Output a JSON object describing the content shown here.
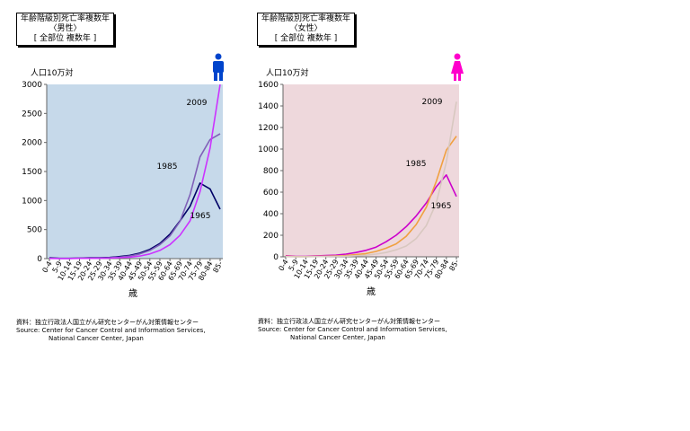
{
  "colors": {
    "male_bg": "#c6d9ea",
    "female_bg": "#eed8dc",
    "male_icon": "#0044cc",
    "female_icon": "#ff00cc"
  },
  "chart_data": [
    {
      "type": "line",
      "title_lines": [
        "年齢階級別死亡率複数年",
        "〈男性〉",
        "[ 全部位 複数年 ]"
      ],
      "unit_label": "人口10万対",
      "xlabel": "歳",
      "icon": "male-figure-icon",
      "categories": [
        "0-4",
        "5-9",
        "10-14",
        "15-19",
        "20-24",
        "25-29",
        "30-34",
        "35-39",
        "40-44",
        "45-49",
        "50-54",
        "55-59",
        "60-64",
        "65-69",
        "70-74",
        "75-79",
        "80-84",
        "85-"
      ],
      "ylim": [
        0,
        3000
      ],
      "yticks": [
        0,
        500,
        1000,
        1500,
        2000,
        2500,
        3000
      ],
      "grid": false,
      "series": [
        {
          "name": "1965",
          "color": "#000066",
          "values": [
            15,
            5,
            5,
            10,
            15,
            15,
            20,
            35,
            55,
            95,
            160,
            260,
            420,
            650,
            900,
            1300,
            1200,
            850
          ]
        },
        {
          "name": "1985",
          "color": "#8060b8",
          "values": [
            8,
            3,
            3,
            8,
            10,
            10,
            15,
            25,
            45,
            80,
            140,
            240,
            390,
            640,
            1100,
            1750,
            2050,
            2150
          ]
        },
        {
          "name": "2009",
          "color": "#cc33ff",
          "values": [
            3,
            1,
            1,
            4,
            5,
            6,
            8,
            15,
            25,
            45,
            80,
            140,
            240,
            400,
            650,
            1150,
            1900,
            3000
          ]
        }
      ],
      "annotations": [
        "2009",
        "1985",
        "1965"
      ]
    },
    {
      "type": "line",
      "title_lines": [
        "年齢階級別死亡率複数年",
        "〈女性〉",
        "[ 全部位 複数年 ]"
      ],
      "unit_label": "人口10万対",
      "xlabel": "歳",
      "icon": "female-figure-icon",
      "categories": [
        "0-4",
        "5-9",
        "10-14",
        "15-19",
        "20-24",
        "25-29",
        "30-34",
        "35-39",
        "40-44",
        "45-49",
        "50-54",
        "55-59",
        "60-64",
        "65-69",
        "70-74",
        "75-79",
        "80-84",
        "85-"
      ],
      "ylim": [
        0,
        1600
      ],
      "yticks": [
        0,
        200,
        400,
        600,
        800,
        1000,
        1200,
        1400,
        1600
      ],
      "grid": false,
      "series": [
        {
          "name": "1965",
          "color": "#cc00cc",
          "values": [
            10,
            4,
            4,
            8,
            12,
            15,
            25,
            40,
            60,
            90,
            140,
            200,
            280,
            380,
            500,
            650,
            760,
            560
          ]
        },
        {
          "name": "1985",
          "color": "#f0a040",
          "values": [
            5,
            2,
            2,
            4,
            6,
            8,
            12,
            20,
            30,
            50,
            80,
            120,
            190,
            300,
            460,
            700,
            990,
            1120
          ]
        },
        {
          "name": "2009",
          "color": "#d8c8c0",
          "values": [
            2,
            1,
            1,
            2,
            3,
            4,
            6,
            10,
            15,
            25,
            40,
            65,
            100,
            170,
            290,
            500,
            880,
            1440
          ]
        }
      ],
      "annotations": [
        "2009",
        "1985",
        "1965"
      ]
    }
  ],
  "source": {
    "line1": "資料：独立行政法人国立がん研究センターがん対策情報センター",
    "line2": "Source:  Center for Cancer Control and Information Services,",
    "line3": "National Cancer Center, Japan"
  }
}
